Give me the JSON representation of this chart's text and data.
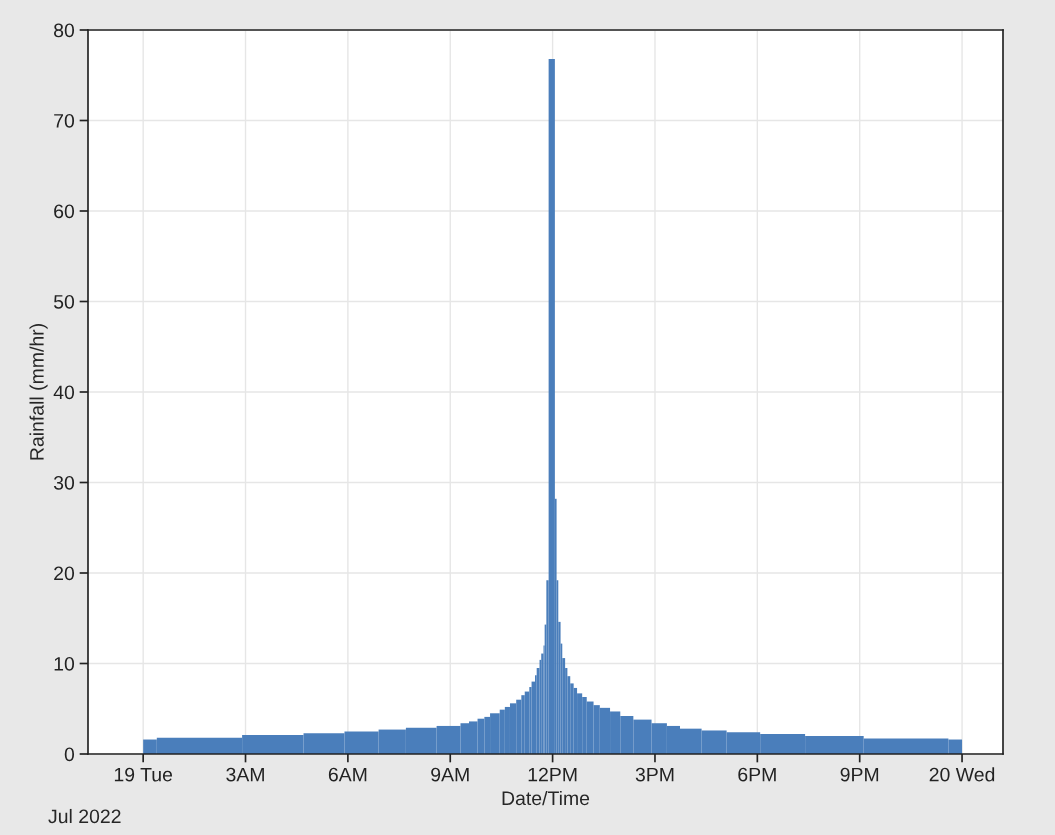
{
  "chart_data": {
    "type": "histogram",
    "xlabel": "Date/Time",
    "ylabel": "Rainfall (mm/hr)",
    "annotations": [
      "Jul 2022"
    ],
    "color": "#4a7ebb",
    "bins": [
      "2022-07-19T00:00",
      "2022-07-19T00:24",
      "2022-07-19T02:54",
      "2022-07-19T04:42",
      "2022-07-19T05:54",
      "2022-07-19T06:54",
      "2022-07-19T07:42",
      "2022-07-19T08:36",
      "2022-07-19T09:18",
      "2022-07-19T09:33",
      "2022-07-19T09:48",
      "2022-07-19T10:00",
      "2022-07-19T10:10",
      "2022-07-19T10:27",
      "2022-07-19T10:36",
      "2022-07-19T10:45",
      "2022-07-19T10:56",
      "2022-07-19T11:05",
      "2022-07-19T11:11",
      "2022-07-19T11:19",
      "2022-07-19T11:23",
      "2022-07-19T11:29",
      "2022-07-19T11:32",
      "2022-07-19T11:37",
      "2022-07-19T11:40",
      "2022-07-19T11:44",
      "2022-07-19T11:46",
      "2022-07-19T11:49",
      "2022-07-19T11:53",
      "2022-07-19T12:04",
      "2022-07-19T12:07",
      "2022-07-19T12:10",
      "2022-07-19T12:14",
      "2022-07-19T12:17",
      "2022-07-19T12:22",
      "2022-07-19T12:26",
      "2022-07-19T12:31",
      "2022-07-19T12:37",
      "2022-07-19T12:43",
      "2022-07-19T12:52",
      "2022-07-19T13:00",
      "2022-07-19T13:12",
      "2022-07-19T13:23",
      "2022-07-19T13:41",
      "2022-07-19T13:59",
      "2022-07-19T14:22",
      "2022-07-19T14:54",
      "2022-07-19T15:21",
      "2022-07-19T15:44",
      "2022-07-19T16:22",
      "2022-07-19T17:06",
      "2022-07-19T18:05",
      "2022-07-19T19:24",
      "2022-07-19T21:07",
      "2022-07-19T23:36",
      "2022-07-20T00:00"
    ],
    "values": [
      1.6,
      1.8,
      2.1,
      2.3,
      2.5,
      2.7,
      2.9,
      3.1,
      3.4,
      3.6,
      3.9,
      4.1,
      4.5,
      4.9,
      5.2,
      5.6,
      6.0,
      6.5,
      6.9,
      7.4,
      8.0,
      8.7,
      9.5,
      10.4,
      11.1,
      12.0,
      14.3,
      19.2,
      76.8,
      28.2,
      19.2,
      14.6,
      12.2,
      10.6,
      9.5,
      8.6,
      7.8,
      7.3,
      6.7,
      6.3,
      5.8,
      5.4,
      5.1,
      4.7,
      4.2,
      3.8,
      3.4,
      3.1,
      2.8,
      2.6,
      2.4,
      2.2,
      2.0,
      1.7,
      1.6
    ],
    "xlim": [
      "2022-07-18T22:23",
      "2022-07-20T01:12"
    ],
    "xticks": [
      {
        "value": "2022-07-19T00:00",
        "label": "19 Tue"
      },
      {
        "value": "2022-07-19T03:00",
        "label": "3AM"
      },
      {
        "value": "2022-07-19T06:00",
        "label": "6AM"
      },
      {
        "value": "2022-07-19T09:00",
        "label": "9AM"
      },
      {
        "value": "2022-07-19T12:00",
        "label": "12PM"
      },
      {
        "value": "2022-07-19T15:00",
        "label": "3PM"
      },
      {
        "value": "2022-07-19T18:00",
        "label": "6PM"
      },
      {
        "value": "2022-07-19T21:00",
        "label": "9PM"
      },
      {
        "value": "2022-07-20T00:00",
        "label": "20 Wed"
      }
    ],
    "ylim": [
      0,
      80
    ],
    "yticks": [
      0,
      10,
      20,
      30,
      40,
      50,
      60,
      70,
      80
    ],
    "grid": true
  }
}
